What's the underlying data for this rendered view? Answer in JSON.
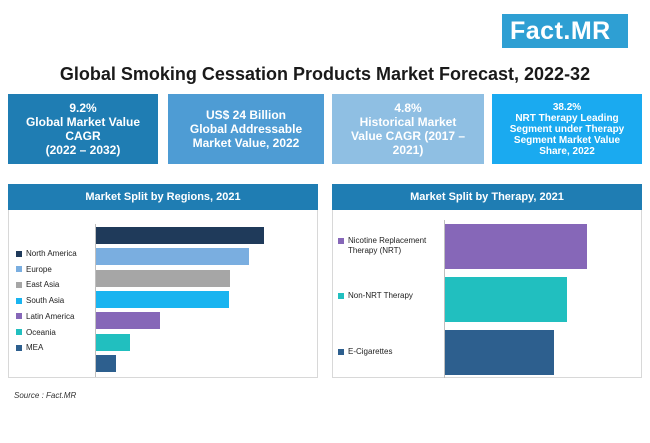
{
  "brand": {
    "logo_text": "Fact",
    "logo_sep": ".",
    "logo_suffix": "MR"
  },
  "title": "Global Smoking Cessation Products Market Forecast, 2022-32",
  "kpis": [
    {
      "lines": [
        "9.2%",
        "Global Market Value",
        "CAGR",
        "(2022 – 2032)"
      ],
      "color": "#1f7db3"
    },
    {
      "lines": [
        "US$ 24 Billion",
        "Global Addressable",
        "Market Value, 2022"
      ],
      "color": "#4e9cd4"
    },
    {
      "lines": [
        "4.8%",
        "Historical Market",
        "Value CAGR (2017 –",
        "2021)"
      ],
      "color": "#8fbfe3"
    },
    {
      "lines": [
        "38.2%",
        "NRT Therapy Leading",
        "Segment under Therapy",
        "Segment Market Value",
        "Share, 2022"
      ],
      "color": "#1aaaf0"
    }
  ],
  "source": "Source : Fact.MR",
  "chart_data": [
    {
      "type": "bar",
      "orientation": "horizontal",
      "title": "Market Split by Regions, 2021",
      "legend_position": "left",
      "categories": [
        "North America",
        "Europe",
        "East Asia",
        "South Asia",
        "Latin America",
        "Oceania",
        "MEA"
      ],
      "values": [
        100,
        91,
        80,
        79,
        38,
        20,
        12
      ],
      "colors": [
        "#1f3a5a",
        "#7aaee0",
        "#a6a6a6",
        "#19b4f0",
        "#8667b8",
        "#21bfbf",
        "#2d5f8e"
      ]
    },
    {
      "type": "bar",
      "orientation": "horizontal",
      "title": "Market Split by Therapy, 2021",
      "legend_position": "left",
      "categories": [
        "Nicotine Replacement Therapy (NRT)",
        "Non-NRT Therapy",
        "E-Cigarettes"
      ],
      "values": [
        100,
        86,
        77
      ],
      "colors": [
        "#8667b8",
        "#21bfbf",
        "#2d5f8e"
      ]
    }
  ]
}
